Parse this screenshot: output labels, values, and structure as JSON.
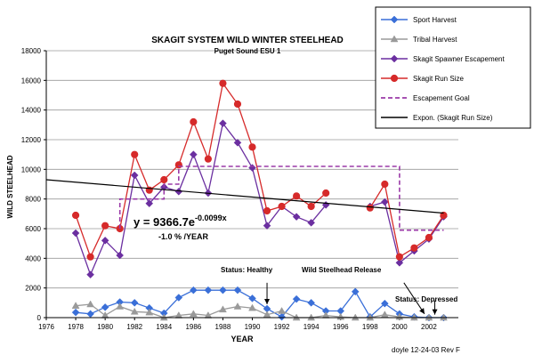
{
  "chart_data": {
    "type": "line",
    "title": "SKAGIT SYSTEM WILD WINTER STEELHEAD",
    "subtitle": "Puget Sound ESU 1",
    "xlabel": "YEAR",
    "ylabel": "WILD STEELHEAD",
    "xlim": [
      1976,
      2004
    ],
    "ylim": [
      0,
      18000
    ],
    "x_ticks": [
      "1976",
      "1978",
      "1980",
      "1982",
      "1984",
      "1986",
      "1988",
      "1990",
      "1992",
      "1994",
      "1996",
      "1998",
      "2000",
      "2002"
    ],
    "y_ticks": [
      "0",
      "2000",
      "4000",
      "6000",
      "8000",
      "10000",
      "12000",
      "14000",
      "16000",
      "18000"
    ],
    "grid": true,
    "legend_position": "top-right",
    "series": [
      {
        "name": "Sport Harvest",
        "style": "line-diamond",
        "color": "#3a6fd8",
        "points": [
          [
            1978,
            350
          ],
          [
            1979,
            250
          ],
          [
            1980,
            700
          ],
          [
            1981,
            1050
          ],
          [
            1982,
            1000
          ],
          [
            1983,
            650
          ],
          [
            1984,
            300
          ],
          [
            1985,
            1350
          ],
          [
            1986,
            1850
          ],
          [
            1987,
            1850
          ],
          [
            1988,
            1850
          ],
          [
            1989,
            1850
          ],
          [
            1990,
            1300
          ],
          [
            1991,
            600
          ],
          [
            1992,
            50
          ],
          [
            1993,
            1250
          ],
          [
            1994,
            1000
          ],
          [
            1995,
            450
          ],
          [
            1996,
            450
          ],
          [
            1997,
            1750
          ],
          [
            1998,
            50
          ],
          [
            1999,
            950
          ],
          [
            2000,
            250
          ],
          [
            2001,
            50
          ],
          [
            2002,
            0
          ],
          [
            2003,
            0
          ]
        ]
      },
      {
        "name": "Tribal Harvest",
        "style": "line-triangle",
        "color": "#9a9a9a",
        "points": [
          [
            1978,
            800
          ],
          [
            1979,
            900
          ],
          [
            1980,
            150
          ],
          [
            1981,
            750
          ],
          [
            1982,
            400
          ],
          [
            1983,
            350
          ],
          [
            1984,
            0
          ],
          [
            1985,
            150
          ],
          [
            1986,
            250
          ],
          [
            1987,
            150
          ],
          [
            1988,
            550
          ],
          [
            1989,
            750
          ],
          [
            1990,
            650
          ],
          [
            1991,
            200
          ],
          [
            1992,
            450
          ],
          [
            1993,
            0
          ],
          [
            1994,
            0
          ],
          [
            1995,
            150
          ],
          [
            1996,
            50
          ],
          [
            1997,
            0
          ],
          [
            1998,
            0
          ],
          [
            1999,
            200
          ],
          [
            2000,
            50
          ],
          [
            2001,
            0
          ],
          [
            2002,
            0
          ],
          [
            2003,
            0
          ]
        ]
      },
      {
        "name": "Skagit Spawner Escapement",
        "style": "line-diamond",
        "color": "#6b2fa0",
        "points": [
          [
            1978,
            5700
          ],
          [
            1979,
            2900
          ],
          [
            1980,
            5200
          ],
          [
            1981,
            4200
          ],
          [
            1982,
            9600
          ],
          [
            1983,
            7700
          ],
          [
            1984,
            8800
          ],
          [
            1985,
            8500
          ],
          [
            1986,
            11000
          ],
          [
            1987,
            8400
          ],
          [
            1988,
            13100
          ],
          [
            1989,
            11800
          ],
          [
            1990,
            10100
          ],
          [
            1991,
            6200
          ],
          [
            1992,
            7500
          ],
          [
            1993,
            6800
          ],
          [
            1994,
            6400
          ],
          [
            1995,
            7600
          ],
          [
            1998,
            7500
          ],
          [
            1999,
            7800
          ],
          [
            2000,
            3700
          ],
          [
            2001,
            4500
          ],
          [
            2002,
            5300
          ],
          [
            2003,
            6800
          ]
        ]
      },
      {
        "name": "Skagit Run Size",
        "style": "line-circle",
        "color": "#d62a2a",
        "points": [
          [
            1978,
            6900
          ],
          [
            1979,
            4100
          ],
          [
            1980,
            6200
          ],
          [
            1981,
            6000
          ],
          [
            1982,
            11000
          ],
          [
            1983,
            8600
          ],
          [
            1984,
            9300
          ],
          [
            1985,
            10300
          ],
          [
            1986,
            13200
          ],
          [
            1987,
            10700
          ],
          [
            1988,
            15800
          ],
          [
            1989,
            14400
          ],
          [
            1990,
            11500
          ],
          [
            1991,
            7200
          ],
          [
            1992,
            7500
          ],
          [
            1993,
            8200
          ],
          [
            1994,
            7500
          ],
          [
            1995,
            8400
          ],
          [
            1998,
            7400
          ],
          [
            1999,
            9000
          ],
          [
            2000,
            4100
          ],
          [
            2001,
            4700
          ],
          [
            2002,
            5400
          ],
          [
            2003,
            6900
          ]
        ]
      },
      {
        "name": "Escapement Goal",
        "style": "dashed",
        "color": "#9b3aa8",
        "points": [
          [
            1981,
            6000
          ],
          [
            1981,
            8000
          ],
          [
            1984,
            8000
          ],
          [
            1984,
            9000
          ],
          [
            1985,
            9000
          ],
          [
            1985,
            10200
          ],
          [
            2000,
            10200
          ],
          [
            2000,
            5900
          ],
          [
            2003,
            5900
          ]
        ]
      },
      {
        "name": "Expon. (Skagit Run Size)",
        "style": "trend",
        "color": "#000000",
        "points": [
          [
            1976,
            9300
          ],
          [
            2003,
            7050
          ]
        ]
      }
    ],
    "annotations": {
      "equation_main": "y = 9366.7e",
      "equation_exp": "-0.0099x",
      "rate": "-1.0 % /YEAR",
      "status_healthy": "Status: Healthy",
      "release": "Wild Steelhead Release",
      "status_depressed": "Status: Depressed",
      "signature": "doyle 12-24-03 Rev F"
    }
  }
}
